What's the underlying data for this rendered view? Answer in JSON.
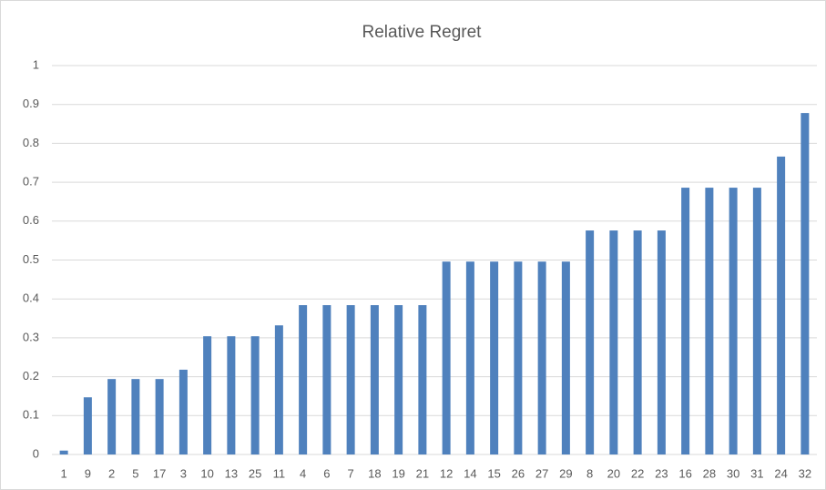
{
  "chart_data": {
    "type": "bar",
    "title": "Relative Regret",
    "categories": [
      "1",
      "9",
      "2",
      "5",
      "17",
      "3",
      "10",
      "13",
      "25",
      "11",
      "4",
      "6",
      "7",
      "18",
      "19",
      "21",
      "12",
      "14",
      "15",
      "26",
      "27",
      "29",
      "8",
      "20",
      "22",
      "23",
      "16",
      "28",
      "30",
      "31",
      "24",
      "32"
    ],
    "values": [
      0.01,
      0.147,
      0.194,
      0.194,
      0.194,
      0.218,
      0.304,
      0.304,
      0.304,
      0.332,
      0.384,
      0.384,
      0.384,
      0.384,
      0.384,
      0.384,
      0.496,
      0.496,
      0.496,
      0.496,
      0.496,
      0.496,
      0.576,
      0.576,
      0.576,
      0.576,
      0.686,
      0.686,
      0.686,
      0.686,
      0.766,
      0.878
    ],
    "color": "#4f81bd",
    "ylim": [
      0,
      1
    ],
    "yticks": [
      0,
      0.1,
      0.2,
      0.3,
      0.4,
      0.5,
      0.6,
      0.7,
      0.8,
      0.9,
      1
    ],
    "grid": true
  }
}
